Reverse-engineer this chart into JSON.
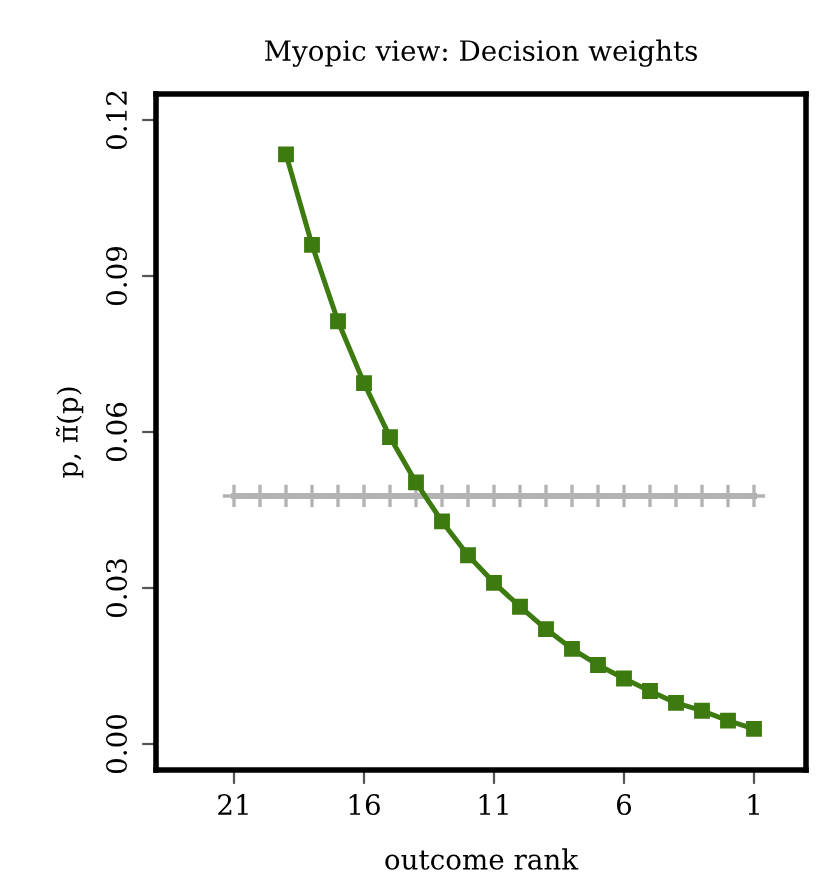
{
  "chart_data": {
    "type": "line",
    "title": "Myopic view: Decision weights",
    "xlabel": "outcome rank",
    "ylabel": "p, π̃(p)",
    "x": [
      21,
      20,
      19,
      18,
      17,
      16,
      15,
      14,
      13,
      12,
      11,
      10,
      9,
      8,
      7,
      6,
      5,
      4,
      3,
      2,
      1
    ],
    "series": [
      {
        "color": "#b3b3b3",
        "marker": "cross",
        "values": [
          0.0477,
          0.0477,
          0.0477,
          0.0477,
          0.0477,
          0.0477,
          0.0477,
          0.0477,
          0.0477,
          0.0477,
          0.0477,
          0.0477,
          0.0477,
          0.0477,
          0.0477,
          0.0477,
          0.0477,
          0.0477,
          0.0477,
          0.0477,
          0.0477
        ]
      },
      {
        "color": "#3d7a0f",
        "marker": "square",
        "values": [
          null,
          null,
          0.1134,
          0.096,
          0.0813,
          0.0694,
          0.059,
          0.0503,
          0.0428,
          0.0363,
          0.031,
          0.0264,
          0.0221,
          0.0183,
          0.0152,
          0.0126,
          0.0102,
          0.0079,
          0.0064,
          0.0045,
          0.0029
        ]
      }
    ],
    "xlim": [
      24,
      -1
    ],
    "xticks": [
      21,
      16,
      11,
      6,
      1
    ],
    "ylim": [
      -0.005,
      0.125
    ],
    "yticks": [
      {
        "value": 0,
        "label": "0.00"
      },
      0.03,
      0.06,
      0.09,
      0.12
    ],
    "grid": false,
    "legend": false
  }
}
